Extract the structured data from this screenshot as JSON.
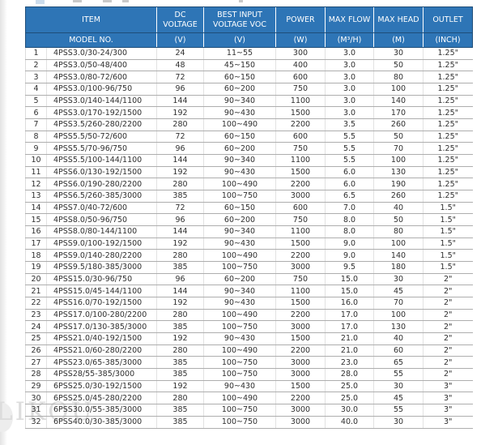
{
  "colors": {
    "header_bg": "#2e75b6",
    "header_border": "#1f4e79",
    "grid_line": "#aeaeae",
    "watermark_color": "#dcdcdc"
  },
  "watermark": "LIKOU",
  "table": {
    "header": {
      "item_top": "ITEM",
      "item_bottom": "MODEL NO.",
      "columns": [
        {
          "top": "DC VOLTAGE",
          "bottom": "(V)"
        },
        {
          "top": "BEST INPUT VOLTAGE VOC",
          "bottom": "(V)"
        },
        {
          "top": "POWER",
          "bottom": "(W)"
        },
        {
          "top": "MAX FLOW",
          "bottom": "(M³/H)"
        },
        {
          "top": "MAX HEAD",
          "bottom": "(M)"
        },
        {
          "top": "OUTLET",
          "bottom": "(INCH)"
        }
      ]
    },
    "rows": [
      [
        "1",
        "4PSS3.0/30-24/300",
        "24",
        "11~55",
        "300",
        "3.0",
        "30",
        "1.25\""
      ],
      [
        "2",
        "4PSS3.0/50-48/400",
        "48",
        "45~150",
        "400",
        "3.0",
        "50",
        "1.25\""
      ],
      [
        "3",
        "4PSS3.0/80-72/600",
        "72",
        "60~150",
        "600",
        "3.0",
        "80",
        "1.25\""
      ],
      [
        "4",
        "4PSS3.0/100-96/750",
        "96",
        "60~200",
        "750",
        "3.0",
        "100",
        "1.25\""
      ],
      [
        "5",
        "4PSS3.0/140-144/1100",
        "144",
        "90~340",
        "1100",
        "3.0",
        "140",
        "1.25\""
      ],
      [
        "6",
        "4PSS3.0/170-192/1500",
        "192",
        "90~430",
        "1500",
        "3.0",
        "170",
        "1.25\""
      ],
      [
        "7",
        "4PSS3.5/260-280/2200",
        "280",
        "100~490",
        "2200",
        "3.5",
        "260",
        "1.25\""
      ],
      [
        "8",
        "4PSS5.5/50-72/600",
        "72",
        "60~150",
        "600",
        "5.5",
        "50",
        "1.25\""
      ],
      [
        "9",
        "4PSS5.5/70-96/750",
        "96",
        "60~200",
        "750",
        "5.5",
        "70",
        "1.25\""
      ],
      [
        "10",
        "4PSS5.5/100-144/1100",
        "144",
        "90~340",
        "1100",
        "5.5",
        "100",
        "1.25\""
      ],
      [
        "11",
        "4PSS6.0/130-192/1500",
        "192",
        "90~430",
        "1500",
        "6.0",
        "130",
        "1.25\""
      ],
      [
        "12",
        "4PSS6.0/190-280/2200",
        "280",
        "100~490",
        "2200",
        "6.0",
        "190",
        "1.25\""
      ],
      [
        "13",
        "4PSS6.5/260-385/3000",
        "385",
        "100~750",
        "3000",
        "6.5",
        "260",
        "1.25\""
      ],
      [
        "14",
        "4PSS7.0/40-72/600",
        "72",
        "60~150",
        "600",
        "7.0",
        "40",
        "1.5\""
      ],
      [
        "15",
        "4PSS8.0/50-96/750",
        "96",
        "60~200",
        "750",
        "8.0",
        "50",
        "1.5\""
      ],
      [
        "16",
        "4PSS8.0/80-144/1100",
        "144",
        "90~340",
        "1100",
        "8.0",
        "80",
        "1.5\""
      ],
      [
        "17",
        "4PSS9.0/100-192/1500",
        "192",
        "90~430",
        "1500",
        "9.0",
        "100",
        "1.5\""
      ],
      [
        "18",
        "4PSS9.0/140-280/2200",
        "280",
        "100~490",
        "2200",
        "9.0",
        "140",
        "1.5\""
      ],
      [
        "19",
        "4PSS9.5/180-385/3000",
        "385",
        "100~750",
        "3000",
        "9.5",
        "180",
        "1.5\""
      ],
      [
        "20",
        "4PSS15.0/30-96/750",
        "96",
        "60~200",
        "750",
        "15.0",
        "30",
        "2\""
      ],
      [
        "21",
        "4PSS15.0/45-144/1100",
        "144",
        "90~340",
        "1100",
        "15.0",
        "45",
        "2\""
      ],
      [
        "22",
        "4PSS16.0/70-192/1500",
        "192",
        "90~430",
        "1500",
        "16.0",
        "70",
        "2\""
      ],
      [
        "23",
        "4PSS17.0/100-280/2200",
        "280",
        "100~490",
        "2200",
        "17.0",
        "100",
        "2\""
      ],
      [
        "24",
        "4PSS17.0/130-385/3000",
        "385",
        "100~750",
        "3000",
        "17.0",
        "130",
        "2\""
      ],
      [
        "25",
        "4PSS21.0/40-192/1500",
        "192",
        "90~430",
        "1500",
        "21.0",
        "40",
        "2\""
      ],
      [
        "26",
        "4PSS21.0/60-280/2200",
        "280",
        "100~490",
        "2200",
        "21.0",
        "60",
        "2\""
      ],
      [
        "27",
        "4PSS23.0/65-385/3000",
        "385",
        "100~750",
        "3000",
        "23.0",
        "65",
        "2\""
      ],
      [
        "28",
        "4PSS28/55-385/3000",
        "385",
        "100~750",
        "3000",
        "28.0",
        "55",
        "2\""
      ],
      [
        "29",
        "6PSS25.0/30-192/1500",
        "192",
        "90~430",
        "1500",
        "25.0",
        "30",
        "3\""
      ],
      [
        "30",
        "6PSS25.0/45-280/2200",
        "280",
        "100~490",
        "2200",
        "25.0",
        "45",
        "3\""
      ],
      [
        "31",
        "6PSS30.0/55-385/3000",
        "385",
        "100~750",
        "3000",
        "30.0",
        "55",
        "3\""
      ],
      [
        "32",
        "6PSS40.0/30-385/3000",
        "385",
        "100~750",
        "3000",
        "40.0",
        "30",
        "3\""
      ]
    ]
  }
}
